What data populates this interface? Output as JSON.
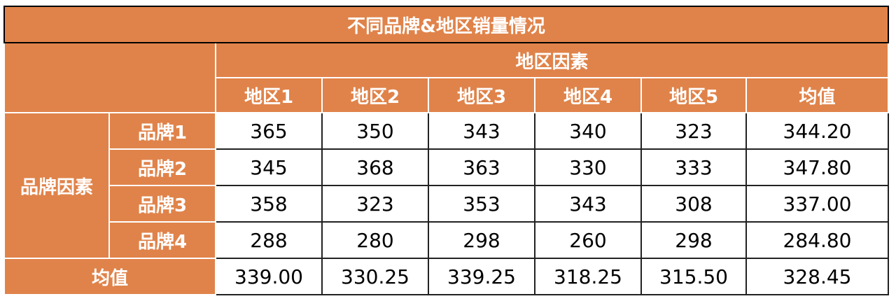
{
  "title": "不同品牌&地区销量情况",
  "header": {
    "group": "地区因素",
    "columns": [
      "地区1",
      "地区2",
      "地区3",
      "地区4",
      "地区5",
      "均值"
    ]
  },
  "row_group": "品牌因素",
  "rows": [
    {
      "label": "品牌1",
      "values": [
        "365",
        "350",
        "343",
        "340",
        "323",
        "344.20"
      ]
    },
    {
      "label": "品牌2",
      "values": [
        "345",
        "368",
        "363",
        "330",
        "333",
        "347.80"
      ]
    },
    {
      "label": "品牌3",
      "values": [
        "358",
        "323",
        "353",
        "343",
        "308",
        "337.00"
      ]
    },
    {
      "label": "品牌4",
      "values": [
        "288",
        "280",
        "298",
        "260",
        "298",
        "284.80"
      ]
    }
  ],
  "footer": {
    "label": "均值",
    "values": [
      "339.00",
      "330.25",
      "339.25",
      "318.25",
      "315.50",
      "328.45"
    ]
  }
}
